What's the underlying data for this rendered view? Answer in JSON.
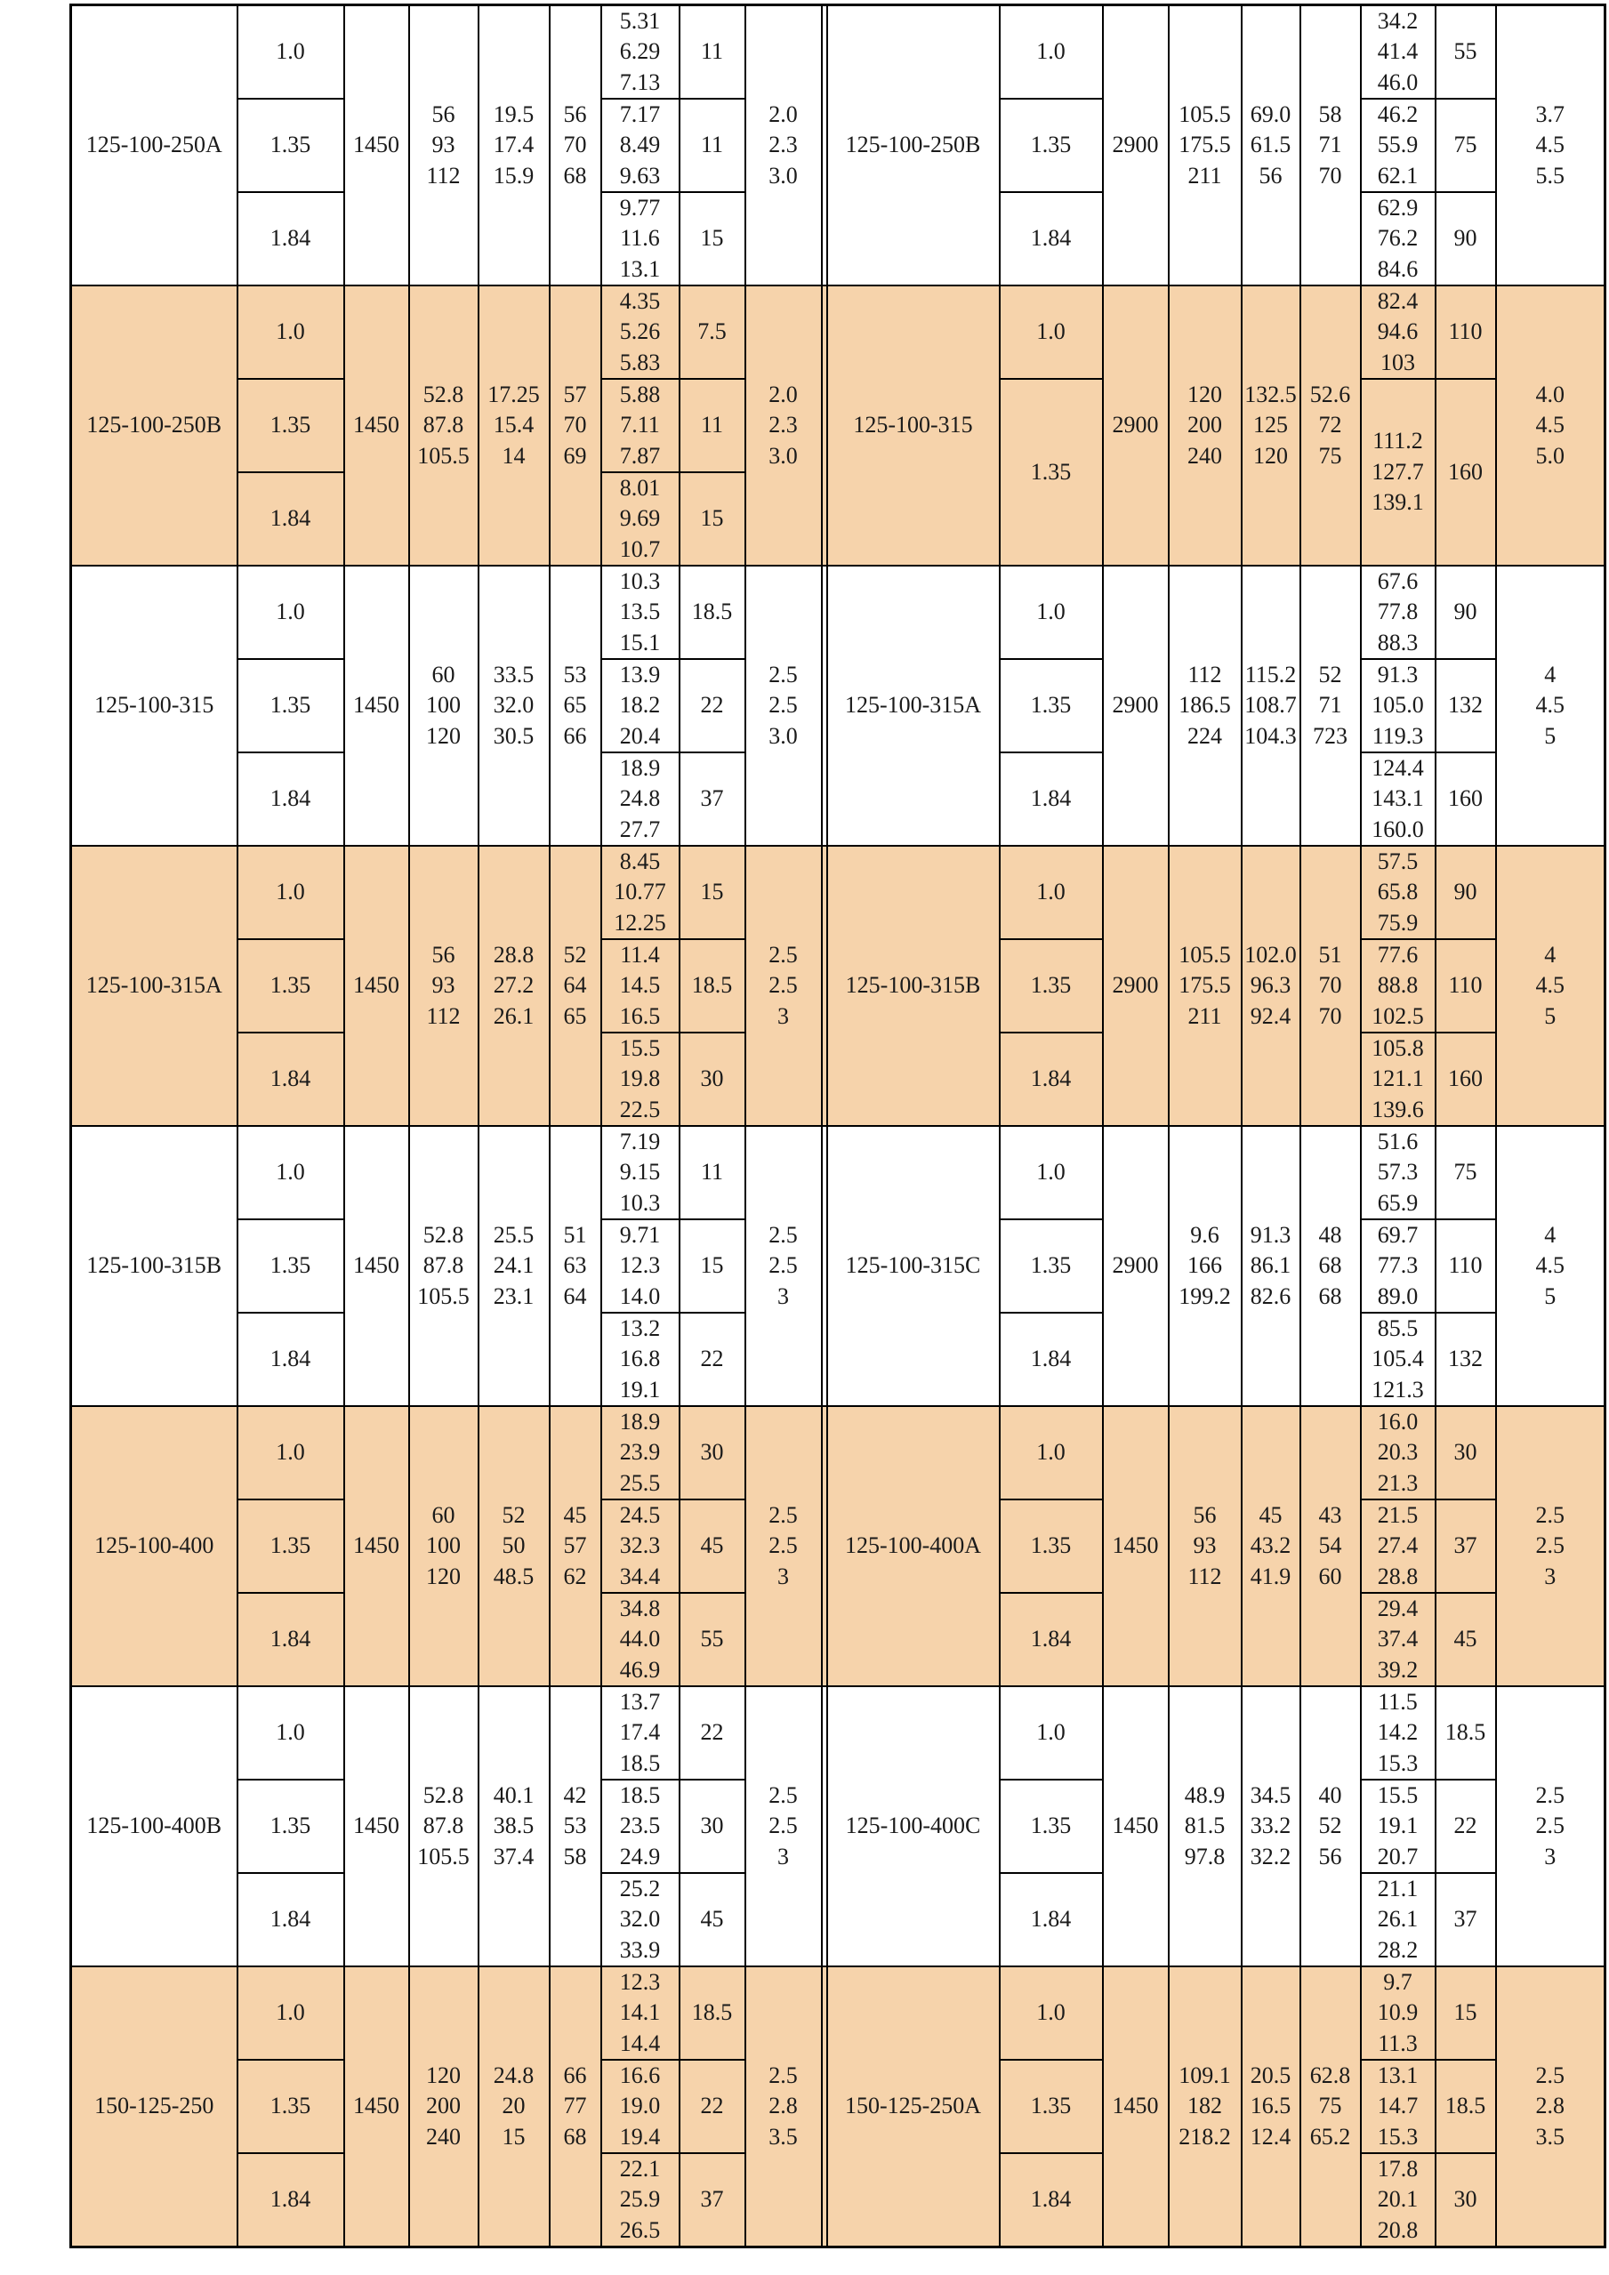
{
  "colors": {
    "band_fill": "#f6d3ab",
    "page_background": "#ffffff",
    "grid_line": "#000000",
    "text": "#1a1a1a"
  },
  "groups": [
    {
      "left": {
        "model": "125-100-250A",
        "ratios": [
          "1.0",
          "1.35",
          "1.84"
        ],
        "speed": "1450",
        "flow": [
          "56",
          "93",
          "112"
        ],
        "head": [
          "19.5",
          "17.4",
          "15.9"
        ],
        "eff": [
          "56",
          "70",
          "68"
        ],
        "power": [
          [
            "5.31",
            "6.29",
            "7.13"
          ],
          [
            "7.17",
            "8.49",
            "9.63"
          ],
          [
            "9.77",
            "11.6",
            "13.1"
          ]
        ],
        "motor": [
          "11",
          "11",
          "15"
        ],
        "npsh": [
          "2.0",
          "2.3",
          "3.0"
        ]
      },
      "right": {
        "model": "125-100-250B",
        "ratios": [
          "1.0",
          "1.35",
          "1.84"
        ],
        "speed": "2900",
        "flow": [
          "105.5",
          "175.5",
          "211"
        ],
        "head": [
          "69.0",
          "61.5",
          "56"
        ],
        "eff": [
          "58",
          "71",
          "70"
        ],
        "power": [
          [
            "34.2",
            "41.4",
            "46.0"
          ],
          [
            "46.2",
            "55.9",
            "62.1"
          ],
          [
            "62.9",
            "76.2",
            "84.6"
          ]
        ],
        "motor": [
          "55",
          "75",
          "90"
        ],
        "npsh": [
          "3.7",
          "4.5",
          "5.5"
        ]
      }
    },
    {
      "left": {
        "model": "125-100-250B",
        "ratios": [
          "1.0",
          "1.35",
          "1.84"
        ],
        "speed": "1450",
        "flow": [
          "52.8",
          "87.8",
          "105.5"
        ],
        "head": [
          "17.25",
          "15.4",
          "14"
        ],
        "eff": [
          "57",
          "70",
          "69"
        ],
        "power": [
          [
            "4.35",
            "5.26",
            "5.83"
          ],
          [
            "5.88",
            "7.11",
            "7.87"
          ],
          [
            "8.01",
            "9.69",
            "10.7"
          ]
        ],
        "motor": [
          "7.5",
          "11",
          "15"
        ],
        "npsh": [
          "2.0",
          "2.3",
          "3.0"
        ]
      },
      "right": {
        "model": "125-100-315",
        "ratios": [
          "1.0",
          "1.35"
        ],
        "ratio_spans": [
          1,
          2
        ],
        "speed": "2900",
        "flow": [
          "120",
          "200",
          "240"
        ],
        "head": [
          "132.5",
          "125",
          "120"
        ],
        "eff": [
          "52.6",
          "72",
          "75"
        ],
        "power": [
          [
            "82.4",
            "94.6",
            "103"
          ],
          [
            "111.2",
            "127.7",
            "139.1"
          ]
        ],
        "motor": [
          "110",
          "160"
        ],
        "npsh": [
          "4.0",
          "4.5",
          "5.0"
        ]
      }
    },
    {
      "left": {
        "model": "125-100-315",
        "ratios": [
          "1.0",
          "1.35",
          "1.84"
        ],
        "speed": "1450",
        "flow": [
          "60",
          "100",
          "120"
        ],
        "head": [
          "33.5",
          "32.0",
          "30.5"
        ],
        "eff": [
          "53",
          "65",
          "66"
        ],
        "power": [
          [
            "10.3",
            "13.5",
            "15.1"
          ],
          [
            "13.9",
            "18.2",
            "20.4"
          ],
          [
            "18.9",
            "24.8",
            "27.7"
          ]
        ],
        "motor": [
          "18.5",
          "22",
          "37"
        ],
        "npsh": [
          "2.5",
          "2.5",
          "3.0"
        ]
      },
      "right": {
        "model": "125-100-315A",
        "ratios": [
          "1.0",
          "1.35",
          "1.84"
        ],
        "speed": "2900",
        "flow": [
          "112",
          "186.5",
          "224"
        ],
        "head": [
          "115.2",
          "108.7",
          "104.3"
        ],
        "eff": [
          "52",
          "71",
          "723"
        ],
        "power": [
          [
            "67.6",
            "77.8",
            "88.3"
          ],
          [
            "91.3",
            "105.0",
            "119.3"
          ],
          [
            "124.4",
            "143.1",
            "160.0"
          ]
        ],
        "motor": [
          "90",
          "132",
          "160"
        ],
        "npsh": [
          "4",
          "4.5",
          "5"
        ]
      }
    },
    {
      "left": {
        "model": "125-100-315A",
        "ratios": [
          "1.0",
          "1.35",
          "1.84"
        ],
        "speed": "1450",
        "flow": [
          "56",
          "93",
          "112"
        ],
        "head": [
          "28.8",
          "27.2",
          "26.1"
        ],
        "eff": [
          "52",
          "64",
          "65"
        ],
        "power": [
          [
            "8.45",
            "10.77",
            "12.25"
          ],
          [
            "11.4",
            "14.5",
            "16.5"
          ],
          [
            "15.5",
            "19.8",
            "22.5"
          ]
        ],
        "motor": [
          "15",
          "18.5",
          "30"
        ],
        "npsh": [
          "2.5",
          "2.5",
          "3"
        ]
      },
      "right": {
        "model": "125-100-315B",
        "ratios": [
          "1.0",
          "1.35",
          "1.84"
        ],
        "speed": "2900",
        "flow": [
          "105.5",
          "175.5",
          "211"
        ],
        "head": [
          "102.0",
          "96.3",
          "92.4"
        ],
        "eff": [
          "51",
          "70",
          "70"
        ],
        "power": [
          [
            "57.5",
            "65.8",
            "75.9"
          ],
          [
            "77.6",
            "88.8",
            "102.5"
          ],
          [
            "105.8",
            "121.1",
            "139.6"
          ]
        ],
        "motor": [
          "90",
          "110",
          "160"
        ],
        "npsh": [
          "4",
          "4.5",
          "5"
        ]
      }
    },
    {
      "left": {
        "model": "125-100-315B",
        "ratios": [
          "1.0",
          "1.35",
          "1.84"
        ],
        "speed": "1450",
        "flow": [
          "52.8",
          "87.8",
          "105.5"
        ],
        "head": [
          "25.5",
          "24.1",
          "23.1"
        ],
        "eff": [
          "51",
          "63",
          "64"
        ],
        "power": [
          [
            "7.19",
            "9.15",
            "10.3"
          ],
          [
            "9.71",
            "12.3",
            "14.0"
          ],
          [
            "13.2",
            "16.8",
            "19.1"
          ]
        ],
        "motor": [
          "11",
          "15",
          "22"
        ],
        "npsh": [
          "2.5",
          "2.5",
          "3"
        ]
      },
      "right": {
        "model": "125-100-315C",
        "ratios": [
          "1.0",
          "1.35",
          "1.84"
        ],
        "speed": "2900",
        "flow": [
          "9.6",
          "166",
          "199.2"
        ],
        "head": [
          "91.3",
          "86.1",
          "82.6"
        ],
        "eff": [
          "48",
          "68",
          "68"
        ],
        "power": [
          [
            "51.6",
            "57.3",
            "65.9"
          ],
          [
            "69.7",
            "77.3",
            "89.0"
          ],
          [
            "85.5",
            "105.4",
            "121.3"
          ]
        ],
        "motor": [
          "75",
          "110",
          "132"
        ],
        "npsh": [
          "4",
          "4.5",
          "5"
        ]
      }
    },
    {
      "left": {
        "model": "125-100-400",
        "ratios": [
          "1.0",
          "1.35",
          "1.84"
        ],
        "speed": "1450",
        "flow": [
          "60",
          "100",
          "120"
        ],
        "head": [
          "52",
          "50",
          "48.5"
        ],
        "eff": [
          "45",
          "57",
          "62"
        ],
        "power": [
          [
            "18.9",
            "23.9",
            "25.5"
          ],
          [
            "24.5",
            "32.3",
            "34.4"
          ],
          [
            "34.8",
            "44.0",
            "46.9"
          ]
        ],
        "motor": [
          "30",
          "45",
          "55"
        ],
        "npsh": [
          "2.5",
          "2.5",
          "3"
        ]
      },
      "right": {
        "model": "125-100-400A",
        "ratios": [
          "1.0",
          "1.35",
          "1.84"
        ],
        "speed": "1450",
        "flow": [
          "56",
          "93",
          "112"
        ],
        "head": [
          "45",
          "43.2",
          "41.9"
        ],
        "eff": [
          "43",
          "54",
          "60"
        ],
        "power": [
          [
            "16.0",
            "20.3",
            "21.3"
          ],
          [
            "21.5",
            "27.4",
            "28.8"
          ],
          [
            "29.4",
            "37.4",
            "39.2"
          ]
        ],
        "motor": [
          "30",
          "37",
          "45"
        ],
        "npsh": [
          "2.5",
          "2.5",
          "3"
        ]
      }
    },
    {
      "left": {
        "model": "125-100-400B",
        "ratios": [
          "1.0",
          "1.35",
          "1.84"
        ],
        "speed": "1450",
        "flow": [
          "52.8",
          "87.8",
          "105.5"
        ],
        "head": [
          "40.1",
          "38.5",
          "37.4"
        ],
        "eff": [
          "42",
          "53",
          "58"
        ],
        "power": [
          [
            "13.7",
            "17.4",
            "18.5"
          ],
          [
            "18.5",
            "23.5",
            "24.9"
          ],
          [
            "25.2",
            "32.0",
            "33.9"
          ]
        ],
        "motor": [
          "22",
          "30",
          "45"
        ],
        "npsh": [
          "2.5",
          "2.5",
          "3"
        ]
      },
      "right": {
        "model": "125-100-400C",
        "ratios": [
          "1.0",
          "1.35",
          "1.84"
        ],
        "speed": "1450",
        "flow": [
          "48.9",
          "81.5",
          "97.8"
        ],
        "head": [
          "34.5",
          "33.2",
          "32.2"
        ],
        "eff": [
          "40",
          "52",
          "56"
        ],
        "power": [
          [
            "11.5",
            "14.2",
            "15.3"
          ],
          [
            "15.5",
            "19.1",
            "20.7"
          ],
          [
            "21.1",
            "26.1",
            "28.2"
          ]
        ],
        "motor": [
          "18.5",
          "22",
          "37"
        ],
        "npsh": [
          "2.5",
          "2.5",
          "3"
        ]
      }
    },
    {
      "left": {
        "model": "150-125-250",
        "ratios": [
          "1.0",
          "1.35",
          "1.84"
        ],
        "speed": "1450",
        "flow": [
          "120",
          "200",
          "240"
        ],
        "head": [
          "24.8",
          "20",
          "15"
        ],
        "eff": [
          "66",
          "77",
          "68"
        ],
        "power": [
          [
            "12.3",
            "14.1",
            "14.4"
          ],
          [
            "16.6",
            "19.0",
            "19.4"
          ],
          [
            "22.1",
            "25.9",
            "26.5"
          ]
        ],
        "motor": [
          "18.5",
          "22",
          "37"
        ],
        "npsh": [
          "2.5",
          "2.8",
          "3.5"
        ]
      },
      "right": {
        "model": "150-125-250A",
        "ratios": [
          "1.0",
          "1.35",
          "1.84"
        ],
        "speed": "1450",
        "flow": [
          "109.1",
          "182",
          "218.2"
        ],
        "head": [
          "20.5",
          "16.5",
          "12.4"
        ],
        "eff": [
          "62.8",
          "75",
          "65.2"
        ],
        "power": [
          [
            "9.7",
            "10.9",
            "11.3"
          ],
          [
            "13.1",
            "14.7",
            "15.3"
          ],
          [
            "17.8",
            "20.1",
            "20.8"
          ]
        ],
        "motor": [
          "15",
          "18.5",
          "30"
        ],
        "npsh": [
          "2.5",
          "2.8",
          "3.5"
        ]
      }
    }
  ]
}
